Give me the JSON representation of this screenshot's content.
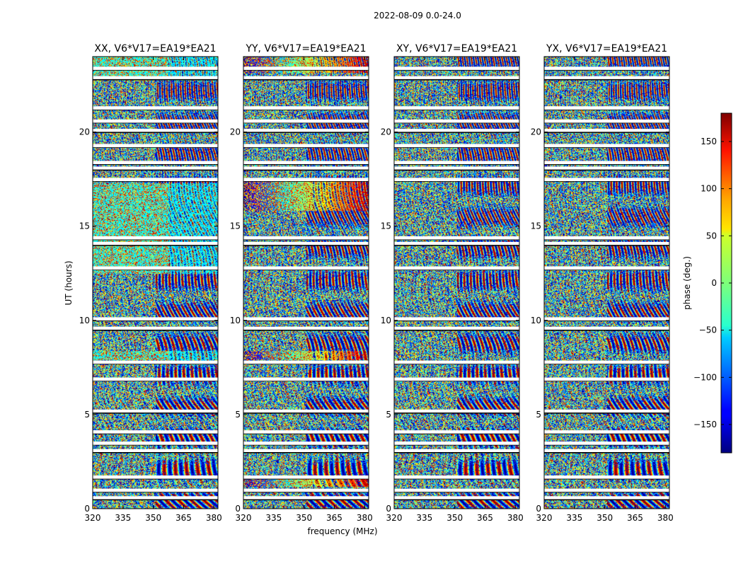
{
  "chart_data": {
    "type": "heatmap",
    "suptitle": "2022-08-09 0.0-24.0",
    "panels": [
      {
        "title": "XX, V6*V17=EA19*EA21",
        "seed": 11,
        "base": "cyan"
      },
      {
        "title": "YY, V6*V17=EA19*EA21",
        "seed": 23,
        "base": "rainbow"
      },
      {
        "title": "XY, V6*V17=EA19*EA21",
        "seed": 37,
        "base": "noise"
      },
      {
        "title": "YX, V6*V17=EA19*EA21",
        "seed": 53,
        "base": "noise"
      }
    ],
    "xlabel": "frequency (MHz)",
    "ylabel": "UT (hours)",
    "xlim": [
      320,
      382
    ],
    "ylim": [
      0,
      24
    ],
    "xticks": [
      {
        "value": 320,
        "label": "320"
      },
      {
        "value": 335,
        "label": "335"
      },
      {
        "value": 350,
        "label": "350"
      },
      {
        "value": 365,
        "label": "365"
      },
      {
        "value": 380,
        "label": "380"
      }
    ],
    "yticks": [
      {
        "value": 0,
        "label": "0"
      },
      {
        "value": 5,
        "label": "5"
      },
      {
        "value": 10,
        "label": "10"
      },
      {
        "value": 15,
        "label": "15"
      },
      {
        "value": 20,
        "label": "20"
      }
    ],
    "colorbar": {
      "label": "phase (deg.)",
      "range": [
        -180,
        180
      ],
      "colormap": "jet",
      "ticks": [
        {
          "value": 150,
          "label": "150"
        },
        {
          "value": 100,
          "label": "100"
        },
        {
          "value": 50,
          "label": "50"
        },
        {
          "value": 0,
          "label": "0"
        },
        {
          "value": -50,
          "label": "−50"
        },
        {
          "value": -100,
          "label": "−100"
        },
        {
          "value": -150,
          "label": "−150"
        }
      ]
    },
    "flagged_ut_hours": [
      0.55,
      0.95,
      1.65,
      3.05,
      3.45,
      4.05,
      5.15,
      6.85,
      7.75,
      9.55,
      10.05,
      12.75,
      14.05,
      14.35,
      17.45,
      18.05,
      18.35,
      19.25,
      20.05,
      20.55,
      21.25,
      22.85,
      23.35
    ]
  }
}
